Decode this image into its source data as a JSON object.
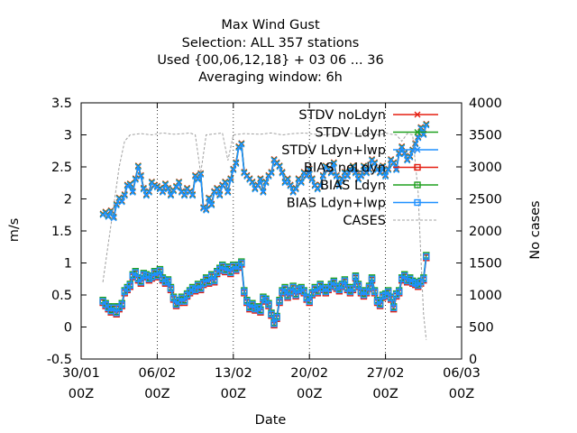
{
  "chart_data": {
    "type": "line",
    "title_lines": [
      "Max Wind Gust",
      "Selection: ALL    357 stations",
      "Used {00,06,12,18} + 03 06 ... 36",
      "Averaging window:  6h"
    ],
    "xlabel": "Date",
    "ylabel": "m/s",
    "y2label": "No cases",
    "ylim": [
      -0.5,
      3.5
    ],
    "y2lim": [
      0,
      4000
    ],
    "yticks": [
      "-0.5",
      "0",
      "0.5",
      "1",
      "1.5",
      "2",
      "2.5",
      "3",
      "3.5"
    ],
    "y2ticks": [
      "0",
      "500",
      "1000",
      "1500",
      "2000",
      "2500",
      "3000",
      "3500",
      "4000"
    ],
    "xticks": [
      {
        "day": 0,
        "date": "30/01",
        "hour": "00Z"
      },
      {
        "day": 7,
        "date": "06/02",
        "hour": "00Z"
      },
      {
        "day": 14,
        "date": "13/02",
        "hour": "00Z"
      },
      {
        "day": 21,
        "date": "20/02",
        "hour": "00Z"
      },
      {
        "day": 28,
        "date": "27/02",
        "hour": "00Z"
      },
      {
        "day": 35,
        "date": "06/03",
        "hour": "00Z"
      }
    ],
    "xlim": [
      0,
      35
    ],
    "legend_position": "top-right",
    "series": [
      {
        "name": "STDV noLdyn",
        "color": "#e51e10",
        "marker": "x",
        "group": "stdv",
        "offset": 0.02
      },
      {
        "name": "STDV Ldyn",
        "color": "#1ea01e",
        "marker": "x",
        "group": "stdv",
        "offset": 0.01
      },
      {
        "name": "STDV Ldyn+lwp",
        "color": "#1e90ff",
        "marker": "x",
        "group": "stdv",
        "offset": 0.0
      },
      {
        "name": "BIAS noLdyn",
        "color": "#e51e10",
        "marker": "square",
        "group": "bias",
        "offset": -0.02
      },
      {
        "name": "BIAS Ldyn",
        "color": "#1ea01e",
        "marker": "square",
        "group": "bias",
        "offset": 0.02
      },
      {
        "name": "BIAS Ldyn+lwp",
        "color": "#1e90ff",
        "marker": "square",
        "group": "bias",
        "offset": 0.0
      },
      {
        "name": "CASES",
        "color": "#a0a0a0",
        "marker": "none",
        "group": "cases",
        "axis": "y2"
      }
    ],
    "stdv_points": [
      [
        2.0,
        1.75
      ],
      [
        2.25,
        1.78
      ],
      [
        2.5,
        1.72
      ],
      [
        2.75,
        1.8
      ],
      [
        3.0,
        1.7
      ],
      [
        3.25,
        1.9
      ],
      [
        3.5,
        2.0
      ],
      [
        3.75,
        1.95
      ],
      [
        4.0,
        2.05
      ],
      [
        4.25,
        2.2
      ],
      [
        4.5,
        2.22
      ],
      [
        4.75,
        2.1
      ],
      [
        5.0,
        2.3
      ],
      [
        5.25,
        2.5
      ],
      [
        5.5,
        2.35
      ],
      [
        5.75,
        2.15
      ],
      [
        6.0,
        2.05
      ],
      [
        6.25,
        2.1
      ],
      [
        6.5,
        2.25
      ],
      [
        6.75,
        2.2
      ],
      [
        7.0,
        2.18
      ],
      [
        7.25,
        2.15
      ],
      [
        7.5,
        2.1
      ],
      [
        7.75,
        2.22
      ],
      [
        8.0,
        2.15
      ],
      [
        8.25,
        2.05
      ],
      [
        8.5,
        2.12
      ],
      [
        8.75,
        2.18
      ],
      [
        9.0,
        2.25
      ],
      [
        9.25,
        2.1
      ],
      [
        9.5,
        2.05
      ],
      [
        9.75,
        2.15
      ],
      [
        10.0,
        2.1
      ],
      [
        10.25,
        2.05
      ],
      [
        10.5,
        2.35
      ],
      [
        10.75,
        2.3
      ],
      [
        11.0,
        2.38
      ],
      [
        11.25,
        1.85
      ],
      [
        11.5,
        1.82
      ],
      [
        11.75,
        2.0
      ],
      [
        12.0,
        1.9
      ],
      [
        12.25,
        2.1
      ],
      [
        12.5,
        2.15
      ],
      [
        12.75,
        2.05
      ],
      [
        13.0,
        2.2
      ],
      [
        13.25,
        2.25
      ],
      [
        13.5,
        2.1
      ],
      [
        13.75,
        2.3
      ],
      [
        14.0,
        2.45
      ],
      [
        14.25,
        2.55
      ],
      [
        14.5,
        2.8
      ],
      [
        14.75,
        2.85
      ],
      [
        15.0,
        2.4
      ],
      [
        15.25,
        2.35
      ],
      [
        15.5,
        2.3
      ],
      [
        15.75,
        2.25
      ],
      [
        16.0,
        2.15
      ],
      [
        16.25,
        2.2
      ],
      [
        16.5,
        2.3
      ],
      [
        16.75,
        2.1
      ],
      [
        17.0,
        2.25
      ],
      [
        17.25,
        2.35
      ],
      [
        17.5,
        2.4
      ],
      [
        17.75,
        2.6
      ],
      [
        18.0,
        2.55
      ],
      [
        18.25,
        2.5
      ],
      [
        18.5,
        2.4
      ],
      [
        18.75,
        2.25
      ],
      [
        19.0,
        2.3
      ],
      [
        19.25,
        2.2
      ],
      [
        19.5,
        2.1
      ],
      [
        19.75,
        2.15
      ],
      [
        20.0,
        2.3
      ],
      [
        20.25,
        2.25
      ],
      [
        20.5,
        2.4
      ],
      [
        20.75,
        2.35
      ],
      [
        21.0,
        2.45
      ],
      [
        21.25,
        2.3
      ],
      [
        21.5,
        2.2
      ],
      [
        21.75,
        2.15
      ],
      [
        22.0,
        2.2
      ],
      [
        22.25,
        2.35
      ],
      [
        22.5,
        2.5
      ],
      [
        22.75,
        2.45
      ],
      [
        23.0,
        2.4
      ],
      [
        23.25,
        2.55
      ],
      [
        23.5,
        2.35
      ],
      [
        23.75,
        2.2
      ],
      [
        24.0,
        2.3
      ],
      [
        24.25,
        2.4
      ],
      [
        24.5,
        2.35
      ],
      [
        24.75,
        2.45
      ],
      [
        25.0,
        2.5
      ],
      [
        25.25,
        2.4
      ],
      [
        25.5,
        2.3
      ],
      [
        25.75,
        2.35
      ],
      [
        26.0,
        2.5
      ],
      [
        26.25,
        2.4
      ],
      [
        26.5,
        2.45
      ],
      [
        26.75,
        2.6
      ],
      [
        27.0,
        2.55
      ],
      [
        27.25,
        2.45
      ],
      [
        27.5,
        2.4
      ],
      [
        27.75,
        2.5
      ],
      [
        28.0,
        2.35
      ],
      [
        28.25,
        2.45
      ],
      [
        28.5,
        2.6
      ],
      [
        28.75,
        2.55
      ],
      [
        29.0,
        2.45
      ],
      [
        29.25,
        2.7
      ],
      [
        29.5,
        2.8
      ],
      [
        29.75,
        2.7
      ],
      [
        30.0,
        2.6
      ],
      [
        30.25,
        2.65
      ],
      [
        30.5,
        2.75
      ],
      [
        30.75,
        2.85
      ],
      [
        31.0,
        2.95
      ],
      [
        31.25,
        3.1
      ],
      [
        31.5,
        3.0
      ],
      [
        31.75,
        3.15
      ]
    ],
    "bias_points": [
      [
        2.0,
        0.4
      ],
      [
        2.25,
        0.35
      ],
      [
        2.5,
        0.3
      ],
      [
        2.75,
        0.25
      ],
      [
        3.0,
        0.3
      ],
      [
        3.25,
        0.22
      ],
      [
        3.5,
        0.3
      ],
      [
        3.75,
        0.35
      ],
      [
        4.0,
        0.55
      ],
      [
        4.25,
        0.6
      ],
      [
        4.5,
        0.65
      ],
      [
        4.75,
        0.8
      ],
      [
        5.0,
        0.85
      ],
      [
        5.25,
        0.75
      ],
      [
        5.5,
        0.7
      ],
      [
        5.75,
        0.82
      ],
      [
        6.0,
        0.8
      ],
      [
        6.25,
        0.75
      ],
      [
        6.5,
        0.78
      ],
      [
        6.75,
        0.85
      ],
      [
        7.0,
        0.8
      ],
      [
        7.25,
        0.88
      ],
      [
        7.5,
        0.75
      ],
      [
        7.75,
        0.7
      ],
      [
        8.0,
        0.72
      ],
      [
        8.25,
        0.6
      ],
      [
        8.5,
        0.45
      ],
      [
        8.75,
        0.35
      ],
      [
        9.0,
        0.4
      ],
      [
        9.25,
        0.45
      ],
      [
        9.5,
        0.4
      ],
      [
        9.75,
        0.5
      ],
      [
        10.0,
        0.55
      ],
      [
        10.25,
        0.6
      ],
      [
        10.5,
        0.58
      ],
      [
        10.75,
        0.65
      ],
      [
        11.0,
        0.6
      ],
      [
        11.25,
        0.68
      ],
      [
        11.5,
        0.75
      ],
      [
        11.75,
        0.7
      ],
      [
        12.0,
        0.8
      ],
      [
        12.25,
        0.72
      ],
      [
        12.5,
        0.85
      ],
      [
        12.75,
        0.9
      ],
      [
        13.0,
        0.95
      ],
      [
        13.25,
        0.88
      ],
      [
        13.5,
        0.92
      ],
      [
        13.75,
        0.85
      ],
      [
        14.0,
        0.95
      ],
      [
        14.25,
        0.9
      ],
      [
        14.5,
        0.95
      ],
      [
        14.75,
        1.0
      ],
      [
        15.0,
        0.55
      ],
      [
        15.25,
        0.4
      ],
      [
        15.5,
        0.3
      ],
      [
        15.75,
        0.35
      ],
      [
        16.0,
        0.28
      ],
      [
        16.25,
        0.3
      ],
      [
        16.5,
        0.25
      ],
      [
        16.75,
        0.45
      ],
      [
        17.0,
        0.42
      ],
      [
        17.25,
        0.35
      ],
      [
        17.5,
        0.2
      ],
      [
        17.75,
        0.05
      ],
      [
        18.0,
        0.15
      ],
      [
        18.25,
        0.4
      ],
      [
        18.5,
        0.55
      ],
      [
        18.75,
        0.6
      ],
      [
        19.0,
        0.48
      ],
      [
        19.25,
        0.55
      ],
      [
        19.5,
        0.62
      ],
      [
        19.75,
        0.5
      ],
      [
        20.0,
        0.58
      ],
      [
        20.25,
        0.6
      ],
      [
        20.5,
        0.55
      ],
      [
        20.75,
        0.45
      ],
      [
        21.0,
        0.4
      ],
      [
        21.25,
        0.52
      ],
      [
        21.5,
        0.6
      ],
      [
        21.75,
        0.55
      ],
      [
        22.0,
        0.65
      ],
      [
        22.25,
        0.6
      ],
      [
        22.5,
        0.55
      ],
      [
        22.75,
        0.6
      ],
      [
        23.0,
        0.65
      ],
      [
        23.25,
        0.7
      ],
      [
        23.5,
        0.62
      ],
      [
        23.75,
        0.58
      ],
      [
        24.0,
        0.65
      ],
      [
        24.25,
        0.72
      ],
      [
        24.5,
        0.6
      ],
      [
        24.75,
        0.55
      ],
      [
        25.0,
        0.6
      ],
      [
        25.25,
        0.78
      ],
      [
        25.5,
        0.65
      ],
      [
        25.75,
        0.55
      ],
      [
        26.0,
        0.5
      ],
      [
        26.25,
        0.55
      ],
      [
        26.5,
        0.62
      ],
      [
        26.75,
        0.75
      ],
      [
        27.0,
        0.55
      ],
      [
        27.25,
        0.4
      ],
      [
        27.5,
        0.35
      ],
      [
        27.75,
        0.48
      ],
      [
        28.0,
        0.5
      ],
      [
        28.25,
        0.55
      ],
      [
        28.5,
        0.45
      ],
      [
        28.75,
        0.3
      ],
      [
        29.0,
        0.5
      ],
      [
        29.25,
        0.55
      ],
      [
        29.5,
        0.75
      ],
      [
        29.75,
        0.8
      ],
      [
        30.0,
        0.72
      ],
      [
        30.25,
        0.75
      ],
      [
        30.5,
        0.7
      ],
      [
        30.75,
        0.68
      ],
      [
        31.0,
        0.65
      ],
      [
        31.25,
        0.7
      ],
      [
        31.5,
        0.75
      ],
      [
        31.75,
        1.1
      ]
    ],
    "cases_points": [
      [
        2.0,
        1200
      ],
      [
        2.5,
        1800
      ],
      [
        3.0,
        2400
      ],
      [
        3.5,
        3000
      ],
      [
        4.0,
        3400
      ],
      [
        4.5,
        3500
      ],
      [
        5.5,
        3520
      ],
      [
        6.5,
        3500
      ],
      [
        7.5,
        3530
      ],
      [
        8.5,
        3510
      ],
      [
        9.5,
        3520
      ],
      [
        10.0,
        3530
      ],
      [
        10.5,
        3500
      ],
      [
        11.0,
        2900
      ],
      [
        11.5,
        3500
      ],
      [
        12.5,
        3520
      ],
      [
        13.0,
        3530
      ],
      [
        13.5,
        3100
      ],
      [
        14.0,
        3500
      ],
      [
        15.0,
        3520
      ],
      [
        16.5,
        3510
      ],
      [
        17.5,
        3530
      ],
      [
        18.5,
        3500
      ],
      [
        19.5,
        3520
      ],
      [
        20.5,
        3530
      ],
      [
        21.5,
        3510
      ],
      [
        22.5,
        3500
      ],
      [
        23.5,
        3520
      ],
      [
        24.5,
        3530
      ],
      [
        25.5,
        3510
      ],
      [
        26.5,
        3520
      ],
      [
        27.5,
        3500
      ],
      [
        28.0,
        3530
      ],
      [
        28.5,
        3510
      ],
      [
        29.0,
        3500
      ],
      [
        29.5,
        3400
      ],
      [
        30.0,
        3520
      ],
      [
        30.5,
        3500
      ],
      [
        31.0,
        2600
      ],
      [
        31.25,
        1600
      ],
      [
        31.5,
        700
      ],
      [
        31.75,
        300
      ]
    ]
  }
}
